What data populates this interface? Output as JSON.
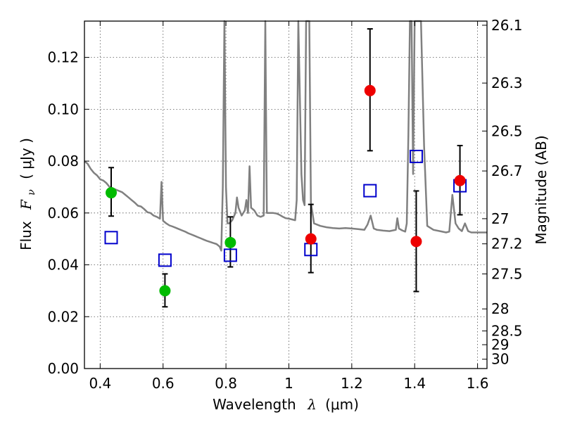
{
  "chart_data": {
    "type": "scatter",
    "xlabel": "Wavelength",
    "xlabel_symbol": "λ",
    "xlabel_unit": "(μm)",
    "ylabel": "Flux",
    "ylabel_symbol": "F",
    "ylabel_subscript": "ν",
    "ylabel_unit": "( μJy )",
    "y2label": "Magnitude (AB)",
    "xlim": [
      0.35,
      1.63
    ],
    "ylim": [
      0.0,
      0.134
    ],
    "grid": true,
    "x_ticks": [
      0.4,
      0.6,
      0.8,
      1.0,
      1.2,
      1.4,
      1.6
    ],
    "x_tick_labels": [
      "0.4",
      "0.6",
      "0.8",
      "1",
      "1.2",
      "1.4",
      "1.6"
    ],
    "y_ticks": [
      0.0,
      0.02,
      0.04,
      0.06,
      0.08,
      0.1,
      0.12
    ],
    "y_tick_labels": [
      "0.00",
      "0.02",
      "0.04",
      "0.06",
      "0.08",
      "0.10",
      "0.12"
    ],
    "y2_ticks": [
      {
        "label": "26.1",
        "flux": 0.1324
      },
      {
        "label": "26.3",
        "flux": 0.1101
      },
      {
        "label": "26.5",
        "flux": 0.0916
      },
      {
        "label": "26.7",
        "flux": 0.0762
      },
      {
        "label": "27",
        "flux": 0.0578
      },
      {
        "label": "27.2",
        "flux": 0.0481
      },
      {
        "label": "27.5",
        "flux": 0.0365
      },
      {
        "label": "28",
        "flux": 0.023
      },
      {
        "label": "28.5",
        "flux": 0.0145
      },
      {
        "label": "29",
        "flux": 0.0092
      },
      {
        "label": "30",
        "flux": 0.0036
      }
    ],
    "series": [
      {
        "kind": "spectrum",
        "color": "#808080",
        "points": [
          [
            0.35,
            0.08
          ],
          [
            0.36,
            0.079
          ],
          [
            0.37,
            0.077
          ],
          [
            0.38,
            0.0755
          ],
          [
            0.39,
            0.0745
          ],
          [
            0.4,
            0.073
          ],
          [
            0.41,
            0.0725
          ],
          [
            0.42,
            0.0715
          ],
          [
            0.43,
            0.07
          ],
          [
            0.44,
            0.0695
          ],
          [
            0.45,
            0.069
          ],
          [
            0.46,
            0.0685
          ],
          [
            0.47,
            0.068
          ],
          [
            0.48,
            0.067
          ],
          [
            0.49,
            0.066
          ],
          [
            0.5,
            0.065
          ],
          [
            0.51,
            0.064
          ],
          [
            0.52,
            0.0628
          ],
          [
            0.53,
            0.0625
          ],
          [
            0.54,
            0.0615
          ],
          [
            0.55,
            0.0603
          ],
          [
            0.56,
            0.06
          ],
          [
            0.57,
            0.059
          ],
          [
            0.58,
            0.0585
          ],
          [
            0.59,
            0.0578
          ],
          [
            0.595,
            0.072
          ],
          [
            0.6,
            0.057
          ],
          [
            0.61,
            0.056
          ],
          [
            0.62,
            0.0552
          ],
          [
            0.63,
            0.0548
          ],
          [
            0.64,
            0.0543
          ],
          [
            0.65,
            0.0538
          ],
          [
            0.66,
            0.0533
          ],
          [
            0.67,
            0.0528
          ],
          [
            0.68,
            0.0522
          ],
          [
            0.69,
            0.0517
          ],
          [
            0.7,
            0.0512
          ],
          [
            0.71,
            0.0507
          ],
          [
            0.72,
            0.0502
          ],
          [
            0.73,
            0.0497
          ],
          [
            0.74,
            0.0492
          ],
          [
            0.75,
            0.0488
          ],
          [
            0.76,
            0.0484
          ],
          [
            0.77,
            0.048
          ],
          [
            0.78,
            0.047
          ],
          [
            0.785,
            0.0455
          ],
          [
            0.79,
            0.07
          ],
          [
            0.795,
            0.134
          ],
          [
            0.8,
            0.07
          ],
          [
            0.805,
            0.056
          ],
          [
            0.81,
            0.056
          ],
          [
            0.82,
            0.0572
          ],
          [
            0.83,
            0.06
          ],
          [
            0.835,
            0.066
          ],
          [
            0.84,
            0.062
          ],
          [
            0.85,
            0.059
          ],
          [
            0.86,
            0.061
          ],
          [
            0.865,
            0.065
          ],
          [
            0.87,
            0.06
          ],
          [
            0.875,
            0.078
          ],
          [
            0.88,
            0.062
          ],
          [
            0.89,
            0.061
          ],
          [
            0.9,
            0.059
          ],
          [
            0.91,
            0.0585
          ],
          [
            0.92,
            0.059
          ],
          [
            0.925,
            0.134
          ],
          [
            0.93,
            0.06
          ],
          [
            0.94,
            0.06
          ],
          [
            0.95,
            0.06
          ],
          [
            0.96,
            0.0598
          ],
          [
            0.97,
            0.0593
          ],
          [
            0.98,
            0.0586
          ],
          [
            0.99,
            0.058
          ],
          [
            1.0,
            0.0578
          ],
          [
            1.01,
            0.0575
          ],
          [
            1.02,
            0.0572
          ],
          [
            1.025,
            0.065
          ],
          [
            1.03,
            0.134
          ],
          [
            1.04,
            0.075
          ],
          [
            1.045,
            0.065
          ],
          [
            1.05,
            0.063
          ],
          [
            1.055,
            0.134
          ],
          [
            1.06,
            0.134
          ],
          [
            1.065,
            0.134
          ],
          [
            1.07,
            0.064
          ],
          [
            1.08,
            0.056
          ],
          [
            1.1,
            0.055
          ],
          [
            1.12,
            0.0545
          ],
          [
            1.14,
            0.0542
          ],
          [
            1.16,
            0.054
          ],
          [
            1.18,
            0.0542
          ],
          [
            1.2,
            0.054
          ],
          [
            1.22,
            0.0538
          ],
          [
            1.24,
            0.0535
          ],
          [
            1.25,
            0.0555
          ],
          [
            1.26,
            0.059
          ],
          [
            1.27,
            0.054
          ],
          [
            1.28,
            0.0535
          ],
          [
            1.3,
            0.0532
          ],
          [
            1.32,
            0.053
          ],
          [
            1.34,
            0.0535
          ],
          [
            1.345,
            0.058
          ],
          [
            1.35,
            0.054
          ],
          [
            1.36,
            0.0533
          ],
          [
            1.37,
            0.0528
          ],
          [
            1.375,
            0.056
          ],
          [
            1.38,
            0.09
          ],
          [
            1.385,
            0.134
          ],
          [
            1.39,
            0.134
          ],
          [
            1.395,
            0.075
          ],
          [
            1.4,
            0.134
          ],
          [
            1.41,
            0.134
          ],
          [
            1.42,
            0.134
          ],
          [
            1.43,
            0.086
          ],
          [
            1.44,
            0.055
          ],
          [
            1.46,
            0.0535
          ],
          [
            1.48,
            0.053
          ],
          [
            1.5,
            0.0525
          ],
          [
            1.51,
            0.0528
          ],
          [
            1.52,
            0.067
          ],
          [
            1.53,
            0.056
          ],
          [
            1.54,
            0.054
          ],
          [
            1.55,
            0.053
          ],
          [
            1.56,
            0.056
          ],
          [
            1.57,
            0.053
          ],
          [
            1.58,
            0.0525
          ],
          [
            1.6,
            0.0525
          ],
          [
            1.62,
            0.0525
          ],
          [
            1.63,
            0.0525
          ]
        ]
      },
      {
        "kind": "model-squares",
        "color": "#0000cc",
        "points": [
          [
            0.435,
            0.0505
          ],
          [
            0.606,
            0.0418
          ],
          [
            0.814,
            0.0437
          ],
          [
            1.07,
            0.0459
          ],
          [
            1.258,
            0.0686
          ],
          [
            1.405,
            0.0818
          ],
          [
            1.544,
            0.0705
          ]
        ]
      },
      {
        "kind": "green-points",
        "color": "#00bb00",
        "points": [
          {
            "x": 0.435,
            "y": 0.0678,
            "err_low": 0.0588,
            "err_high": 0.0775
          },
          {
            "x": 0.606,
            "y": 0.03,
            "err_low": 0.0238,
            "err_high": 0.0365
          },
          {
            "x": 0.814,
            "y": 0.0486,
            "err_low": 0.0392,
            "err_high": 0.0585
          }
        ]
      },
      {
        "kind": "red-points",
        "color": "#ee0000",
        "points": [
          {
            "x": 1.07,
            "y": 0.05,
            "err_low": 0.037,
            "err_high": 0.0633
          },
          {
            "x": 1.258,
            "y": 0.1072,
            "err_low": 0.084,
            "err_high": 0.131
          },
          {
            "x": 1.405,
            "y": 0.049,
            "err_low": 0.0297,
            "err_high": 0.0685
          },
          {
            "x": 1.544,
            "y": 0.0725,
            "err_low": 0.0593,
            "err_high": 0.086
          }
        ]
      }
    ]
  }
}
